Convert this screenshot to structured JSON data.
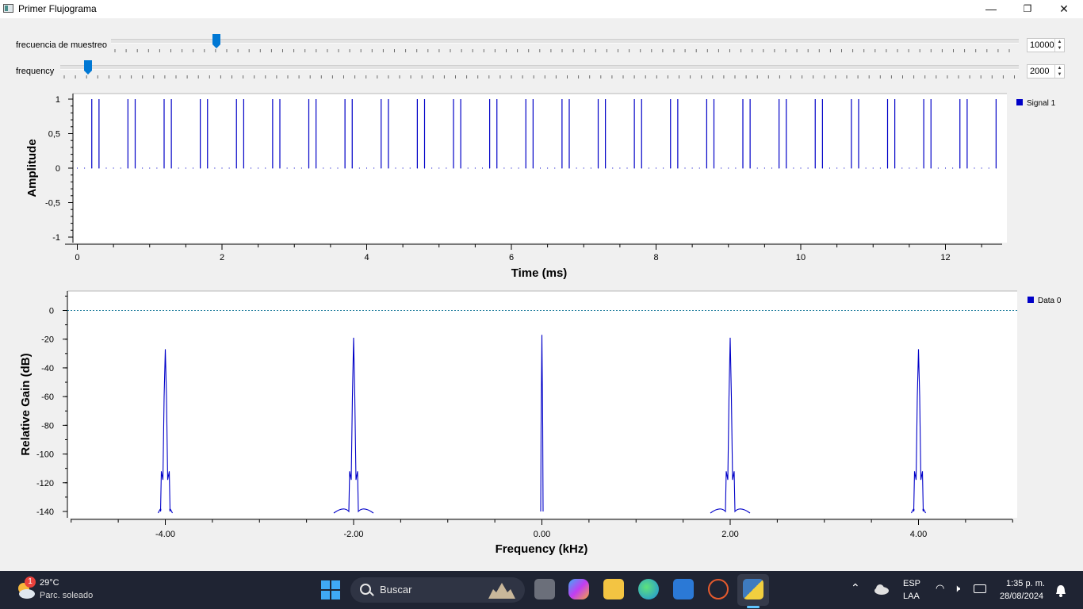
{
  "window": {
    "title": "Primer Flujograma",
    "minimize": "—",
    "maximize": "❐",
    "close": "✕"
  },
  "controls": {
    "sample_rate": {
      "label": "frecuencia de muestreo",
      "value": "10000"
    },
    "frequency": {
      "label": "frequency",
      "value": "2000"
    }
  },
  "time_plot": {
    "ylabel": "Amplitude",
    "xlabel": "Time (ms)",
    "legend": "Signal 1",
    "yticks": [
      "1",
      "0,5",
      "0",
      "-0,5",
      "-1"
    ],
    "xticks": [
      "0",
      "2",
      "4",
      "6",
      "8",
      "10",
      "12"
    ]
  },
  "freq_plot": {
    "ylabel": "Relative Gain (dB)",
    "xlabel": "Frequency (kHz)",
    "legend": "Data 0",
    "yticks": [
      "0",
      "-20",
      "-40",
      "-60",
      "-80",
      "-100",
      "-120",
      "-140"
    ],
    "xticks": [
      "-4.00",
      "-2.00",
      "0.00",
      "2.00",
      "4.00"
    ]
  },
  "chart_data": [
    {
      "type": "line",
      "xlabel": "Time (ms)",
      "ylabel": "Amplitude",
      "xlim": [
        -0.1,
        12.9
      ],
      "ylim": [
        -1,
        1
      ],
      "series": [
        {
          "name": "Signal 1",
          "values_desc": "impulse pairs of amplitude 1",
          "pulse_times": [
            0.2,
            0.3,
            0.7,
            0.8,
            1.2,
            1.3,
            1.7,
            1.8,
            2.2,
            2.3,
            2.7,
            2.8,
            3.2,
            3.3,
            3.7,
            3.8,
            4.2,
            4.3,
            4.7,
            4.8,
            5.2,
            5.3,
            5.7,
            5.8,
            6.2,
            6.3,
            6.7,
            6.8,
            7.2,
            7.3,
            7.7,
            7.8,
            8.2,
            8.3,
            8.7,
            8.8,
            9.2,
            9.3,
            9.7,
            9.8,
            10.2,
            10.3,
            10.7,
            10.8,
            11.2,
            11.3,
            11.7,
            11.8,
            12.2,
            12.3,
            12.7
          ],
          "pulse_value": 1
        }
      ],
      "legend": "right"
    },
    {
      "type": "line",
      "xlabel": "Frequency (kHz)",
      "ylabel": "Relative Gain (dB)",
      "xlim": [
        -5,
        5
      ],
      "ylim": [
        -140,
        10
      ],
      "series": [
        {
          "name": "Data 0",
          "peaks": [
            {
              "x": -4.0,
              "y": -27
            },
            {
              "x": -2.0,
              "y": -19
            },
            {
              "x": 0.0,
              "y": -17
            },
            {
              "x": 2.0,
              "y": -19
            },
            {
              "x": 4.0,
              "y": -27
            }
          ]
        }
      ],
      "reference_line": 0,
      "legend": "right"
    }
  ],
  "taskbar": {
    "weather_temp": "29°C",
    "weather_desc": "Parc. soleado",
    "weather_badge": "1",
    "search_label": "Buscar",
    "lang_top": "ESP",
    "lang_bottom": "LAA",
    "time": "1:35 p. m.",
    "date": "28/08/2024"
  },
  "colors": {
    "signal": "#0000c8",
    "accent": "#0078d4",
    "taskbar": "#1f2433"
  }
}
